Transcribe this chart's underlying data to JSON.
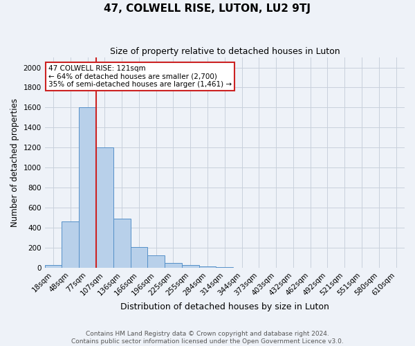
{
  "title": "47, COLWELL RISE, LUTON, LU2 9TJ",
  "subtitle": "Size of property relative to detached houses in Luton",
  "xlabel": "Distribution of detached houses by size in Luton",
  "ylabel": "Number of detached properties",
  "footnote1": "Contains HM Land Registry data © Crown copyright and database right 2024.",
  "footnote2": "Contains public sector information licensed under the Open Government Licence v3.0.",
  "categories": [
    "18sqm",
    "48sqm",
    "77sqm",
    "107sqm",
    "136sqm",
    "166sqm",
    "196sqm",
    "225sqm",
    "255sqm",
    "284sqm",
    "314sqm",
    "344sqm",
    "373sqm",
    "403sqm",
    "432sqm",
    "462sqm",
    "492sqm",
    "521sqm",
    "551sqm",
    "580sqm",
    "610sqm"
  ],
  "values": [
    30,
    460,
    1600,
    1200,
    490,
    210,
    125,
    45,
    30,
    15,
    10,
    0,
    0,
    0,
    0,
    0,
    0,
    0,
    0,
    0,
    0
  ],
  "bar_color": "#b8d0ea",
  "bar_edge_color": "#5590c8",
  "grid_color": "#c8d0dc",
  "background_color": "#eef2f8",
  "vline_x": 2.5,
  "vline_color": "#cc2222",
  "annotation_line1": "47 COLWELL RISE: 121sqm",
  "annotation_line2": "← 64% of detached houses are smaller (2,700)",
  "annotation_line3": "35% of semi-detached houses are larger (1,461) →",
  "annotation_box_facecolor": "#ffffff",
  "annotation_box_edgecolor": "#cc2222",
  "ylim": [
    0,
    2100
  ],
  "yticks": [
    0,
    200,
    400,
    600,
    800,
    1000,
    1200,
    1400,
    1600,
    1800,
    2000
  ],
  "title_fontsize": 11,
  "subtitle_fontsize": 9,
  "tick_fontsize": 7.5,
  "ylabel_fontsize": 8.5,
  "xlabel_fontsize": 9
}
